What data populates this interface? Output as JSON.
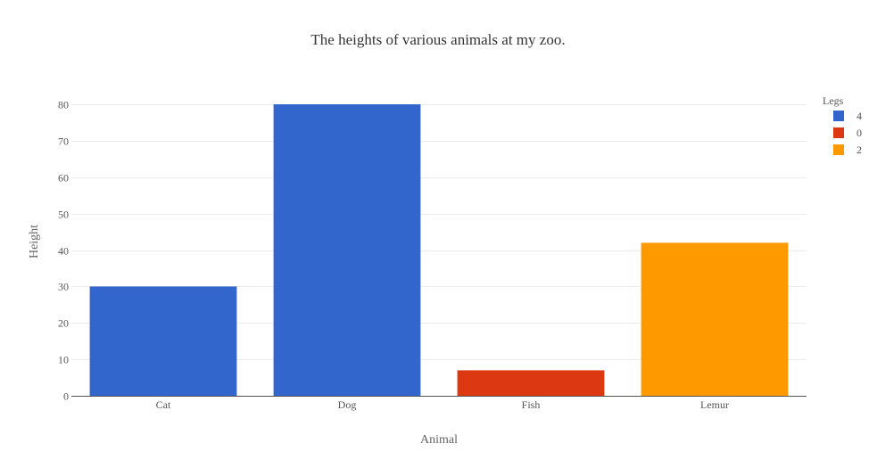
{
  "chart_data": {
    "type": "bar",
    "title": "The heights of various animals at my zoo.",
    "xlabel": "Animal",
    "ylabel": "Height",
    "categories": [
      "Cat",
      "Dog",
      "Fish",
      "Lemur"
    ],
    "values": [
      30,
      80,
      7,
      42
    ],
    "legs": [
      "4",
      "4",
      "0",
      "2"
    ],
    "ylim": [
      0,
      80
    ],
    "yticks": [
      0,
      10,
      20,
      30,
      40,
      50,
      60,
      70,
      80
    ],
    "grid": true,
    "legend": {
      "title": "Legs",
      "position": "top-right",
      "entries": [
        {
          "label": "4",
          "color": "#3366cc"
        },
        {
          "label": "0",
          "color": "#dc3912"
        },
        {
          "label": "2",
          "color": "#ff9900"
        }
      ]
    }
  }
}
